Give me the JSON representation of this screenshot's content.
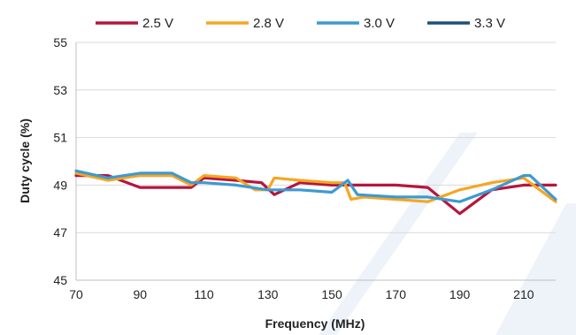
{
  "chart_data": {
    "type": "line",
    "title": "",
    "xlabel": "Frequency (MHz)",
    "ylabel": "Duty cycle (%)",
    "xlim": [
      70,
      220
    ],
    "ylim": [
      45,
      55
    ],
    "x_ticks": [
      70,
      90,
      110,
      130,
      150,
      170,
      190,
      210
    ],
    "y_ticks": [
      45,
      47,
      49,
      51,
      53,
      55
    ],
    "grid": "horizontal",
    "legend_position": "top",
    "series": [
      {
        "name": "2.5 V",
        "color": "#b5163d",
        "points": [
          [
            70,
            49.4
          ],
          [
            80,
            49.4
          ],
          [
            90,
            48.9
          ],
          [
            100,
            48.9
          ],
          [
            106,
            48.9
          ],
          [
            110,
            49.3
          ],
          [
            120,
            49.2
          ],
          [
            128,
            49.1
          ],
          [
            132,
            48.6
          ],
          [
            140,
            49.1
          ],
          [
            150,
            49.0
          ],
          [
            156,
            49.0
          ],
          [
            160,
            49.0
          ],
          [
            170,
            49.0
          ],
          [
            180,
            48.9
          ],
          [
            190,
            47.8
          ],
          [
            200,
            48.8
          ],
          [
            210,
            49.0
          ],
          [
            220,
            49.0
          ]
        ]
      },
      {
        "name": "2.8 V",
        "color": "#f5a623",
        "points": [
          [
            70,
            49.5
          ],
          [
            80,
            49.2
          ],
          [
            90,
            49.4
          ],
          [
            100,
            49.4
          ],
          [
            106,
            49.0
          ],
          [
            110,
            49.4
          ],
          [
            120,
            49.3
          ],
          [
            126,
            48.8
          ],
          [
            130,
            48.8
          ],
          [
            132,
            49.3
          ],
          [
            140,
            49.2
          ],
          [
            150,
            49.1
          ],
          [
            154,
            49.1
          ],
          [
            156,
            48.4
          ],
          [
            160,
            48.5
          ],
          [
            170,
            48.4
          ],
          [
            180,
            48.3
          ],
          [
            190,
            48.8
          ],
          [
            200,
            49.1
          ],
          [
            210,
            49.3
          ],
          [
            220,
            48.3
          ]
        ]
      },
      {
        "name": "3.0 V",
        "color": "#3d9ad1",
        "points": [
          [
            70,
            49.6
          ],
          [
            80,
            49.3
          ],
          [
            90,
            49.5
          ],
          [
            100,
            49.5
          ],
          [
            106,
            49.1
          ],
          [
            110,
            49.1
          ],
          [
            120,
            49.0
          ],
          [
            130,
            48.8
          ],
          [
            140,
            48.8
          ],
          [
            150,
            48.7
          ],
          [
            155,
            49.2
          ],
          [
            158,
            48.6
          ],
          [
            170,
            48.5
          ],
          [
            180,
            48.5
          ],
          [
            190,
            48.3
          ],
          [
            200,
            48.8
          ],
          [
            210,
            49.4
          ],
          [
            212,
            49.4
          ],
          [
            220,
            48.4
          ]
        ]
      },
      {
        "name": "3.3 V",
        "color": "#1f4e79",
        "points": []
      }
    ]
  }
}
